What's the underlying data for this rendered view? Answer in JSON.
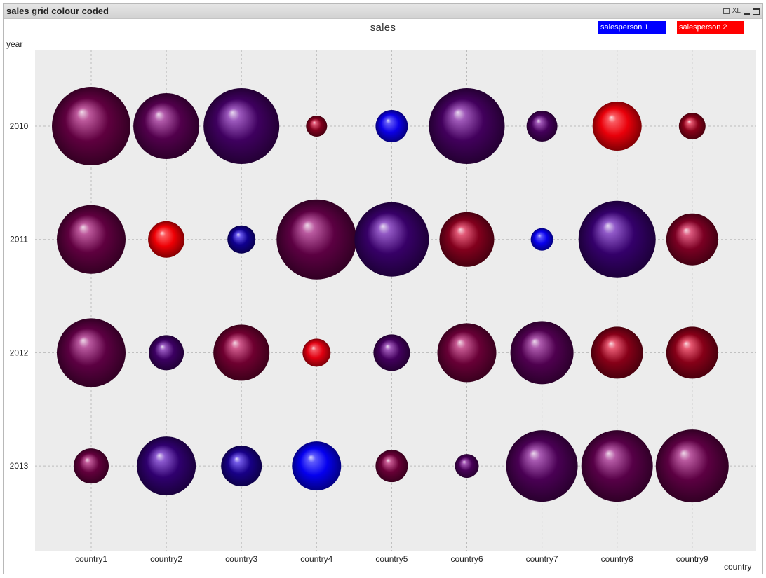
{
  "window": {
    "title": "sales grid colour coded",
    "xl_label": "XL"
  },
  "colors": {
    "salesperson1": "#0000ff",
    "salesperson2": "#ff0000",
    "plot_background": "#ececec",
    "grid": "#bbbbbb"
  },
  "chart_data": {
    "type": "scatter",
    "title": "sales",
    "xlabel": "country",
    "ylabel": "year",
    "legend_placement": "top-right",
    "grid": true,
    "legend": [
      {
        "label": "salesperson 1",
        "color": "#0000ff"
      },
      {
        "label": "salesperson 2",
        "color": "#ff0000"
      }
    ],
    "categories": [
      "country1",
      "country2",
      "country3",
      "country4",
      "country5",
      "country6",
      "country7",
      "country8",
      "country9"
    ],
    "years": [
      "2010",
      "2011",
      "2012",
      "2013"
    ],
    "bubbles": [
      {
        "year": "2010",
        "country": "country1",
        "size": 112,
        "share_salesperson2": 0.6
      },
      {
        "year": "2010",
        "country": "country2",
        "size": 94,
        "share_salesperson2": 0.52
      },
      {
        "year": "2010",
        "country": "country3",
        "size": 108,
        "share_salesperson2": 0.4
      },
      {
        "year": "2010",
        "country": "country4",
        "size": 30,
        "share_salesperson2": 0.82
      },
      {
        "year": "2010",
        "country": "country5",
        "size": 46,
        "share_salesperson2": 0.05
      },
      {
        "year": "2010",
        "country": "country6",
        "size": 108,
        "share_salesperson2": 0.42
      },
      {
        "year": "2010",
        "country": "country7",
        "size": 44,
        "share_salesperson2": 0.43
      },
      {
        "year": "2010",
        "country": "country8",
        "size": 70,
        "share_salesperson2": 0.96
      },
      {
        "year": "2010",
        "country": "country9",
        "size": 38,
        "share_salesperson2": 0.85
      },
      {
        "year": "2011",
        "country": "country1",
        "size": 98,
        "share_salesperson2": 0.6
      },
      {
        "year": "2011",
        "country": "country2",
        "size": 52,
        "share_salesperson2": 0.98
      },
      {
        "year": "2011",
        "country": "country3",
        "size": 40,
        "share_salesperson2": 0.1
      },
      {
        "year": "2011",
        "country": "country4",
        "size": 114,
        "share_salesperson2": 0.58
      },
      {
        "year": "2011",
        "country": "country5",
        "size": 106,
        "share_salesperson2": 0.35
      },
      {
        "year": "2011",
        "country": "country6",
        "size": 78,
        "share_salesperson2": 0.82
      },
      {
        "year": "2011",
        "country": "country7",
        "size": 32,
        "share_salesperson2": 0.03
      },
      {
        "year": "2011",
        "country": "country8",
        "size": 110,
        "share_salesperson2": 0.33
      },
      {
        "year": "2011",
        "country": "country9",
        "size": 74,
        "share_salesperson2": 0.78
      },
      {
        "year": "2012",
        "country": "country1",
        "size": 98,
        "share_salesperson2": 0.58
      },
      {
        "year": "2012",
        "country": "country2",
        "size": 50,
        "share_salesperson2": 0.38
      },
      {
        "year": "2012",
        "country": "country3",
        "size": 80,
        "share_salesperson2": 0.7
      },
      {
        "year": "2012",
        "country": "country4",
        "size": 40,
        "share_salesperson2": 0.93
      },
      {
        "year": "2012",
        "country": "country5",
        "size": 52,
        "share_salesperson2": 0.42
      },
      {
        "year": "2012",
        "country": "country6",
        "size": 84,
        "share_salesperson2": 0.66
      },
      {
        "year": "2012",
        "country": "country7",
        "size": 90,
        "share_salesperson2": 0.5
      },
      {
        "year": "2012",
        "country": "country8",
        "size": 74,
        "share_salesperson2": 0.85
      },
      {
        "year": "2012",
        "country": "country9",
        "size": 74,
        "share_salesperson2": 0.85
      },
      {
        "year": "2013",
        "country": "country1",
        "size": 50,
        "share_salesperson2": 0.62
      },
      {
        "year": "2013",
        "country": "country2",
        "size": 84,
        "share_salesperson2": 0.3
      },
      {
        "year": "2013",
        "country": "country3",
        "size": 58,
        "share_salesperson2": 0.15
      },
      {
        "year": "2013",
        "country": "country4",
        "size": 70,
        "share_salesperson2": 0.02
      },
      {
        "year": "2013",
        "country": "country5",
        "size": 46,
        "share_salesperson2": 0.66
      },
      {
        "year": "2013",
        "country": "country6",
        "size": 34,
        "share_salesperson2": 0.45
      },
      {
        "year": "2013",
        "country": "country7",
        "size": 102,
        "share_salesperson2": 0.47
      },
      {
        "year": "2013",
        "country": "country8",
        "size": 102,
        "share_salesperson2": 0.55
      },
      {
        "year": "2013",
        "country": "country9",
        "size": 104,
        "share_salesperson2": 0.58
      }
    ]
  }
}
